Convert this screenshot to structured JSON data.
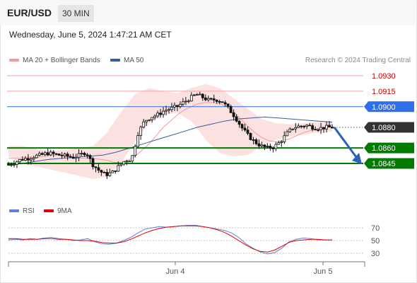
{
  "header": {
    "symbol": "EUR/USD",
    "timeframe": "30 MIN"
  },
  "datetime": "Wednesday, June 5, 2024 1:47:21 AM CET",
  "legend": {
    "bollinger": "MA 20 + Bollinger Bands",
    "ma50": "MA 50",
    "rsi": "RSI",
    "rsi_ma": "9MA"
  },
  "attribution": "Research © 2024 Trading Central",
  "colors": {
    "resistance": "#cc0000",
    "resistance_line": "#f3a3a3",
    "pivot": "#2f6fe8",
    "support": "#007a00",
    "current": "#333333",
    "bollinger_fill": "#fcdede",
    "ma20": "#f19a9a",
    "ma50": "#3a5d9c",
    "rsi": "#5b82d6",
    "rsi_ma": "#e00000",
    "arrow": "#2d61b5"
  },
  "chart_data": [
    {
      "type": "candlestick",
      "title": "EUR/USD 30 MIN",
      "x_ticks": [
        "Jun 4",
        "Jun 5"
      ],
      "ylim": [
        1.0815,
        1.0945
      ],
      "levels": [
        {
          "label": "1.0930",
          "value": 1.093,
          "kind": "resistance"
        },
        {
          "label": "1.0915",
          "value": 1.0915,
          "kind": "resistance"
        },
        {
          "label": "1.0900",
          "value": 1.09,
          "kind": "pivot"
        },
        {
          "label": "1.0880",
          "value": 1.088,
          "kind": "current"
        },
        {
          "label": "1.0860",
          "value": 1.086,
          "kind": "support"
        },
        {
          "label": "1.0845",
          "value": 1.0845,
          "kind": "support"
        }
      ],
      "close_path": [
        1.0844,
        1.0846,
        1.0849,
        1.085,
        1.0852,
        1.0853,
        1.0855,
        1.0854,
        1.0853,
        1.0852,
        1.0851,
        1.0853,
        1.0856,
        1.0844,
        1.0838,
        1.0834,
        1.0836,
        1.0842,
        1.0848,
        1.0849,
        1.0874,
        1.0886,
        1.089,
        1.0892,
        1.0896,
        1.0898,
        1.09,
        1.0904,
        1.0908,
        1.0912,
        1.0909,
        1.0906,
        1.0907,
        1.0905,
        1.0898,
        1.089,
        1.088,
        1.0872,
        1.0866,
        1.0862,
        1.086,
        1.0861,
        1.0866,
        1.0874,
        1.088,
        1.0881,
        1.0882,
        1.088,
        1.0879,
        1.088,
        1.088
      ],
      "ma20": [
        1.085,
        1.085,
        1.085,
        1.0851,
        1.0851,
        1.0852,
        1.0853,
        1.0853,
        1.0852,
        1.0851,
        1.085,
        1.085,
        1.085,
        1.0849,
        1.0848,
        1.0846,
        1.0846,
        1.0848,
        1.0852,
        1.0858,
        1.0864,
        1.0872,
        1.088,
        1.0886,
        1.0892,
        1.0897,
        1.09,
        1.0903,
        1.0904,
        1.0904,
        1.0903,
        1.09,
        1.0895,
        1.0888,
        1.0881,
        1.0875,
        1.087,
        1.0867,
        1.0866,
        1.0867,
        1.0869,
        1.0872,
        1.0875,
        1.0877,
        1.0879,
        1.088,
        1.088
      ],
      "ma50": [
        1.0843,
        1.0845,
        1.0847,
        1.0849,
        1.085,
        1.0851,
        1.0852,
        1.0853,
        1.0856,
        1.086,
        1.0864,
        1.0868,
        1.0872,
        1.0876,
        1.088,
        1.0883,
        1.0886,
        1.0888,
        1.0889,
        1.089,
        1.0889,
        1.0888,
        1.0887,
        1.0886,
        1.0885
      ],
      "bollinger": {
        "upper": [
          1.0862,
          1.0862,
          1.0859,
          1.0857,
          1.0858,
          1.086,
          1.0862,
          1.0875,
          1.0895,
          1.0912,
          1.0918,
          1.0915,
          1.0913,
          1.0918,
          1.0922,
          1.0918,
          1.0908,
          1.0898,
          1.0888,
          1.0884,
          1.0883,
          1.0884,
          1.0885,
          1.0886
        ],
        "lower": [
          1.0852,
          1.0845,
          1.0842,
          1.0839,
          1.0836,
          1.0833,
          1.083,
          1.0832,
          1.0846,
          1.0866,
          1.0884,
          1.0892,
          1.0894,
          1.0886,
          1.0868,
          1.0855,
          1.0852,
          1.0853,
          1.0862,
          1.0868,
          1.0871,
          1.0873,
          1.0875,
          1.0876
        ]
      },
      "forecast_arrow": {
        "from": 1.088,
        "to": 1.0845
      }
    },
    {
      "type": "line",
      "title": "RSI",
      "y_ticks": [
        30,
        50,
        70
      ],
      "ylim": [
        20,
        80
      ],
      "series": [
        {
          "name": "RSI",
          "values": [
            51,
            52,
            51,
            53,
            52,
            54,
            55,
            53,
            52,
            50,
            51,
            53,
            48,
            45,
            44,
            46,
            50,
            55,
            62,
            68,
            70,
            72,
            71,
            72,
            73,
            74,
            74,
            72,
            70,
            68,
            66,
            62,
            55,
            45,
            38,
            32,
            29,
            31,
            38,
            48,
            52,
            54,
            53,
            51,
            51,
            51
          ]
        },
        {
          "name": "9MA",
          "values": [
            53,
            53,
            52,
            52,
            52,
            53,
            53,
            52,
            52,
            51,
            50,
            50,
            49,
            47,
            46,
            46,
            48,
            52,
            57,
            62,
            66,
            69,
            71,
            72,
            73,
            73,
            73,
            72,
            70,
            67,
            63,
            57,
            50,
            43,
            37,
            33,
            32,
            35,
            41,
            47,
            50,
            51,
            52,
            52,
            51,
            51
          ]
        }
      ]
    }
  ]
}
